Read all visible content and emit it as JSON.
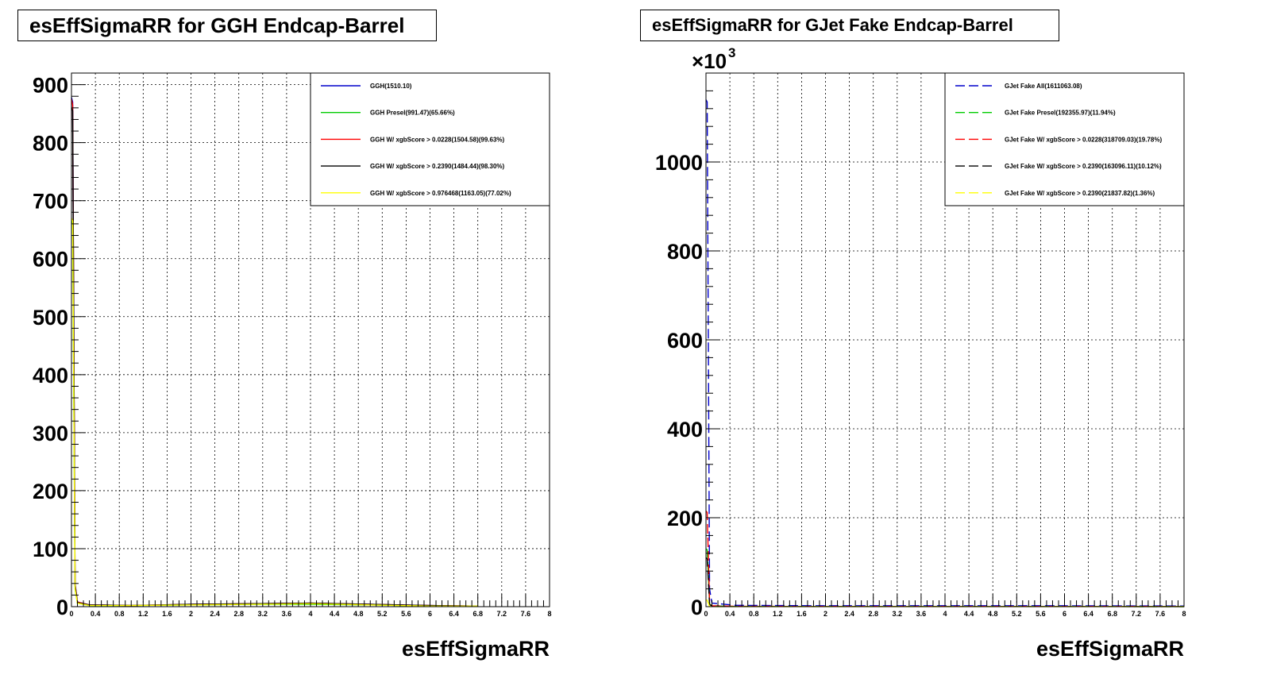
{
  "chart_data": [
    {
      "type": "line",
      "title": "esEffSigmaRR for GGH Endcap-Barrel",
      "xlabel": "esEffSigmaRR",
      "ylabel": "",
      "xlim": [
        0,
        8
      ],
      "ylim": [
        0,
        920
      ],
      "grid": true,
      "legend_position": "top-right",
      "x_ticks": [
        "0",
        "0.4",
        "0.8",
        "1.2",
        "1.6",
        "2",
        "2.4",
        "2.8",
        "3.2",
        "3.6",
        "4",
        "4.4",
        "4.8",
        "5.2",
        "5.6",
        "6",
        "6.4",
        "6.8",
        "7.2",
        "7.6",
        "8"
      ],
      "y_ticks": [
        0,
        100,
        200,
        300,
        400,
        500,
        600,
        700,
        800,
        900
      ],
      "y_multiplier": "",
      "series": [
        {
          "name": "GGH(1510.10)",
          "color": "#0000cc",
          "dashed": false,
          "x": [
            0,
            0.02,
            0.06,
            0.1,
            0.3,
            1.0,
            2.0,
            3.0,
            4.0,
            5.0,
            6.0,
            6.8
          ],
          "y": [
            878,
            870,
            40,
            8,
            3,
            2,
            4,
            5,
            6,
            4,
            2,
            1
          ]
        },
        {
          "name": "GGH Presel(991.47)(65.66%)",
          "color": "#00cc00",
          "dashed": false,
          "x": [
            0,
            0.02,
            0.06,
            0.1,
            0.3,
            1.0,
            2.0,
            3.0,
            4.0,
            5.0,
            6.0,
            6.8
          ],
          "y": [
            665,
            660,
            30,
            6,
            2,
            2,
            3,
            4,
            4,
            3,
            1,
            1
          ]
        },
        {
          "name": "GGH W/ xgbScore > 0.0228(1504.58)(99.63%)",
          "color": "#ff0000",
          "dashed": false,
          "x": [
            0,
            0.02,
            0.06,
            0.1,
            0.3,
            1.0,
            2.0,
            3.0,
            4.0,
            5.0,
            6.0,
            6.8
          ],
          "y": [
            875,
            865,
            38,
            8,
            3,
            2,
            4,
            5,
            6,
            4,
            2,
            1
          ]
        },
        {
          "name": "GGH W/ xgbScore > 0.2390(1484.44)(98.30%)",
          "color": "#000000",
          "dashed": false,
          "x": [
            0,
            0.02,
            0.06,
            0.1,
            0.3,
            1.0,
            2.0,
            3.0,
            4.0,
            5.0,
            6.0,
            6.8
          ],
          "y": [
            860,
            855,
            36,
            7,
            3,
            2,
            4,
            5,
            6,
            4,
            2,
            1
          ]
        },
        {
          "name": "GGH W/ xgbScore > 0.976468(1163.05)(77.02%)",
          "color": "#ffff00",
          "dashed": false,
          "x": [
            0,
            0.02,
            0.06,
            0.1,
            0.3,
            1.0,
            2.0,
            3.0,
            4.0,
            5.0,
            6.0,
            6.8
          ],
          "y": [
            670,
            665,
            30,
            6,
            2,
            2,
            3,
            4,
            5,
            3,
            1,
            1
          ]
        }
      ]
    },
    {
      "type": "line",
      "title": "esEffSigmaRR for GJet Fake Endcap-Barrel",
      "xlabel": "esEffSigmaRR",
      "ylabel": "",
      "xlim": [
        0,
        8
      ],
      "ylim": [
        0,
        1200000
      ],
      "grid": true,
      "legend_position": "top-right",
      "x_ticks": [
        "0",
        "0.4",
        "0.8",
        "1.2",
        "1.6",
        "2",
        "2.4",
        "2.8",
        "3.2",
        "3.6",
        "4",
        "4.4",
        "4.8",
        "5.2",
        "5.6",
        "6",
        "6.4",
        "6.8",
        "7.2",
        "7.6",
        "8"
      ],
      "y_ticks": [
        0,
        200,
        400,
        600,
        800,
        1000
      ],
      "y_multiplier": "×10",
      "y_multiplier_exponent": "3",
      "series": [
        {
          "name": "GJet Fake All(1611063.08)",
          "color": "#0000cc",
          "dashed": true,
          "x": [
            0,
            0.02,
            0.06,
            0.1,
            0.5,
            2.0,
            4.0,
            6.0,
            8.0
          ],
          "y": [
            1140000,
            1135000,
            40000,
            8000,
            3000,
            2000,
            2000,
            2000,
            1500
          ]
        },
        {
          "name": "GJet Fake Presel(192355.97)(11.94%)",
          "color": "#00cc00",
          "dashed": true,
          "x": [
            0,
            0.02,
            0.06,
            0.1,
            0.5,
            2.0,
            4.0,
            6.0,
            8.0
          ],
          "y": [
            130000,
            128000,
            6000,
            1500,
            500,
            300,
            300,
            300,
            200
          ]
        },
        {
          "name": "GJet Fake W/ xgbScore > 0.0228(318709.03)(19.78%)",
          "color": "#ff0000",
          "dashed": true,
          "x": [
            0,
            0.02,
            0.06,
            0.1,
            0.5,
            2.0,
            4.0,
            6.0,
            8.0
          ],
          "y": [
            215000,
            212000,
            10000,
            2000,
            800,
            500,
            500,
            500,
            400
          ]
        },
        {
          "name": "GJet Fake W/ xgbScore > 0.2390(163096.11)(10.12%)",
          "color": "#000000",
          "dashed": true,
          "x": [
            0,
            0.02,
            0.06,
            0.1,
            0.5,
            2.0,
            4.0,
            6.0,
            8.0
          ],
          "y": [
            110000,
            108000,
            5000,
            1200,
            400,
            300,
            300,
            300,
            200
          ]
        },
        {
          "name": "GJet Fake W/ xgbScore > 0.2390(21837.82)(1.36%)",
          "color": "#ffff00",
          "dashed": true,
          "x": [
            0,
            0.02,
            0.06,
            0.1,
            0.5,
            2.0,
            4.0,
            6.0,
            8.0
          ],
          "y": [
            15000,
            14500,
            800,
            200,
            80,
            50,
            50,
            50,
            40
          ]
        }
      ]
    }
  ]
}
